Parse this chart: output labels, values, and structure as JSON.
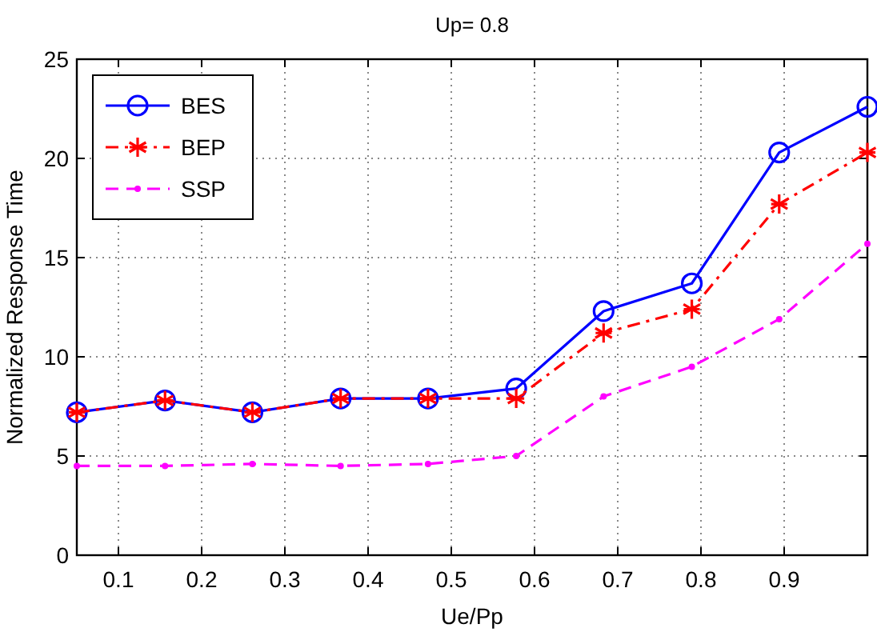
{
  "chart_data": {
    "type": "line",
    "title": "Up= 0.8",
    "xlabel": "Ue/Pp",
    "ylabel": "Normalized Response Time",
    "x": [
      0.05,
      0.156,
      0.261,
      0.367,
      0.472,
      0.578,
      0.683,
      0.789,
      0.894,
      1.0
    ],
    "series": [
      {
        "name": "BES",
        "color": "#0000ff",
        "marker": "circle",
        "line_style": "solid",
        "values": [
          7.2,
          7.8,
          7.2,
          7.9,
          7.9,
          8.4,
          12.3,
          13.7,
          20.3,
          22.6
        ]
      },
      {
        "name": "BEP",
        "color": "#ff0000",
        "marker": "cross",
        "line_style": "dashdot",
        "values": [
          7.2,
          7.8,
          7.2,
          7.9,
          7.9,
          7.9,
          11.2,
          12.4,
          17.7,
          20.3
        ]
      },
      {
        "name": "SSP",
        "color": "#ff00ff",
        "marker": "point",
        "line_style": "dashed",
        "values": [
          4.5,
          4.5,
          4.6,
          4.5,
          4.6,
          5.0,
          8.0,
          9.5,
          11.9,
          15.7
        ]
      }
    ],
    "xlim": [
      0.05,
      1.0
    ],
    "xticks": [
      0.1,
      0.2,
      0.3,
      0.4,
      0.5,
      0.6,
      0.7,
      0.8,
      0.9
    ],
    "ylim": [
      0,
      25
    ],
    "yticks": [
      0,
      5,
      10,
      15,
      20,
      25
    ],
    "grid": true,
    "legend": "top left"
  }
}
